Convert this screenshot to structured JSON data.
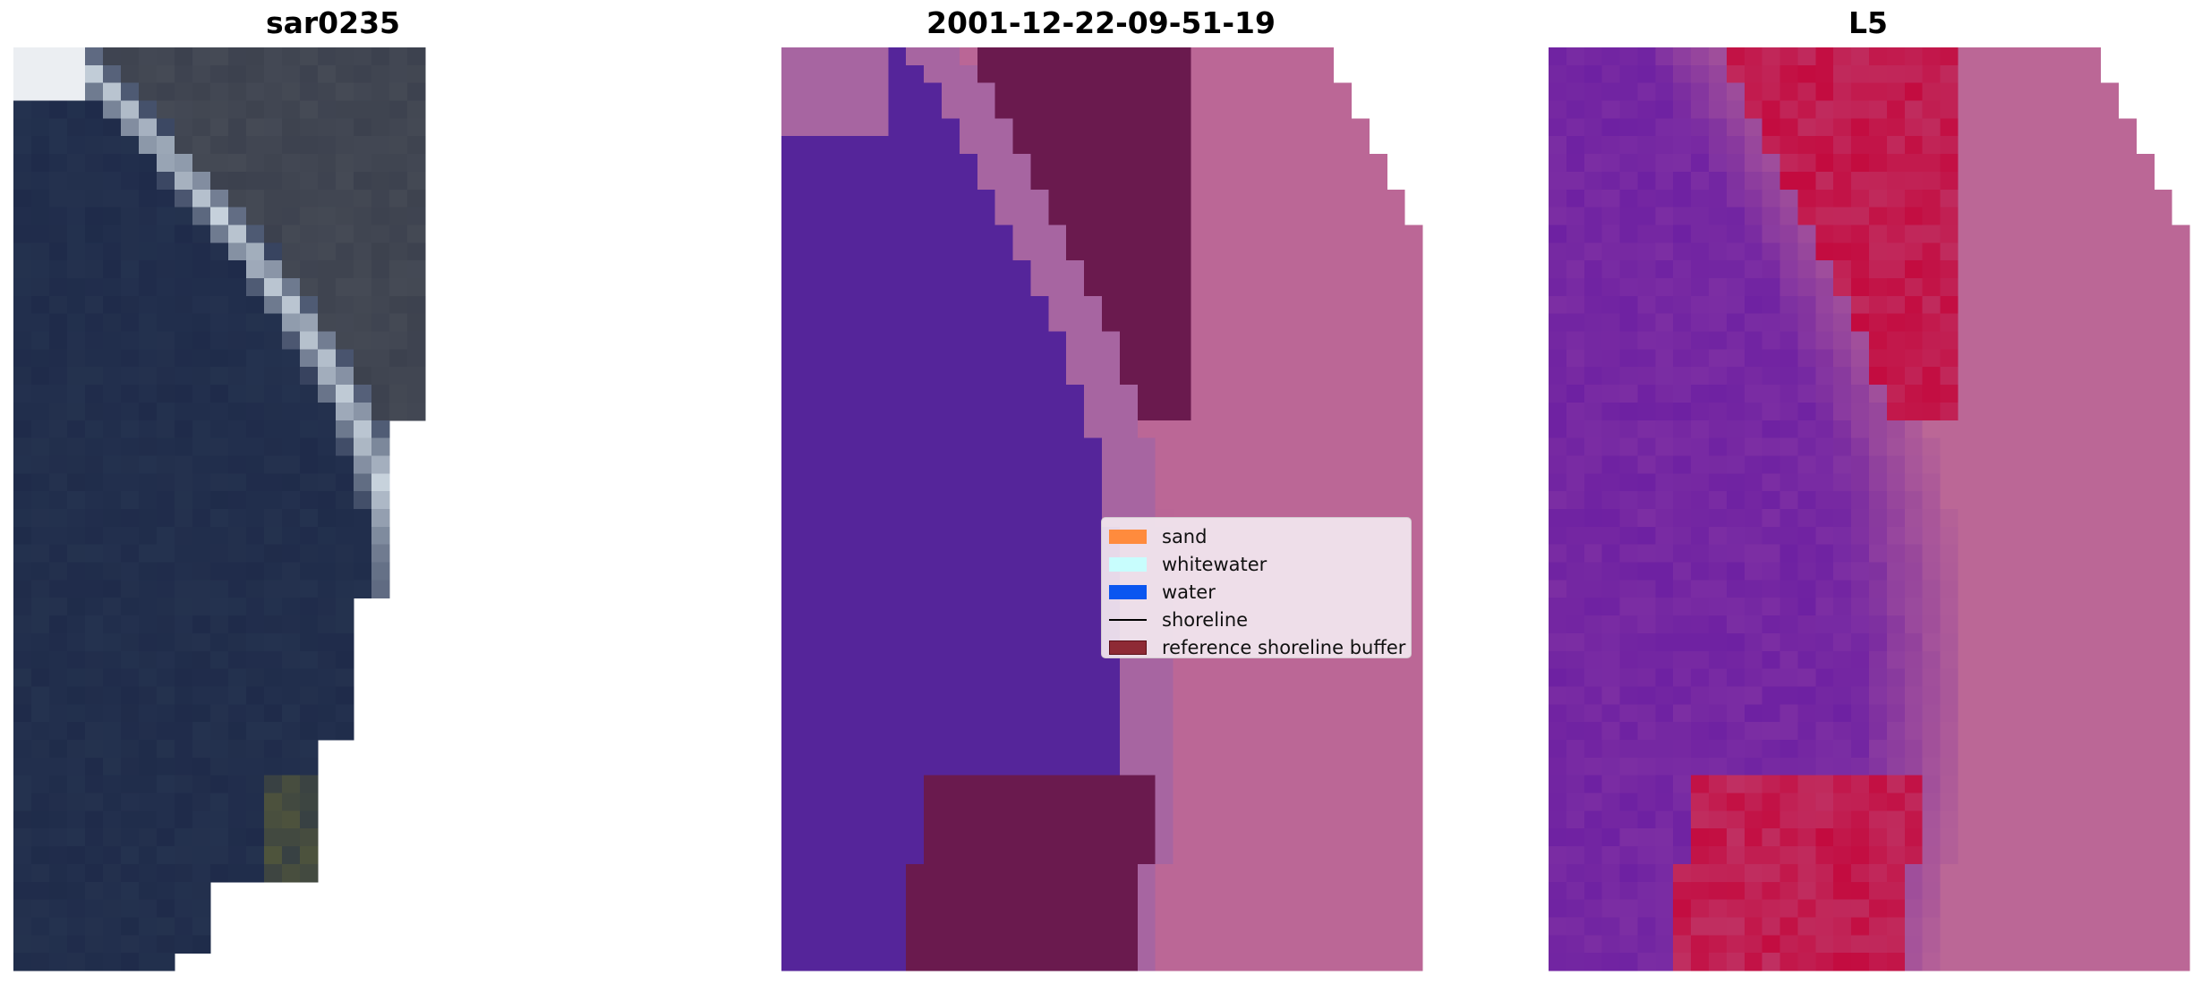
{
  "panels": [
    {
      "id": "rgb",
      "title": "sar0235"
    },
    {
      "id": "classification",
      "title": "2001-12-22-09-51-19"
    },
    {
      "id": "index",
      "title": "L5"
    }
  ],
  "legend": {
    "items": [
      {
        "label": "sand",
        "kind": "patch",
        "color": "#ff8b3d"
      },
      {
        "label": "whitewater",
        "kind": "patch",
        "color": "#c8fdfd"
      },
      {
        "label": "water",
        "kind": "patch",
        "color": "#0a56f0"
      },
      {
        "label": "shoreline",
        "kind": "line",
        "color": "#000000"
      },
      {
        "label": "reference shoreline buffer",
        "kind": "patch",
        "color": "#8e2a35"
      }
    ]
  },
  "colors": {
    "water_class": "#55259a",
    "sand_class": "#ba6696",
    "land_class": "#bb6796",
    "shallow_class": "#a765a1",
    "buffer_dark": "#6a1a4e",
    "index_red": "#c30b3f",
    "index_purple": "#7c2ea3",
    "rgb_deep_water": "#1f2b4a",
    "rgb_surf": "#c9d4de",
    "rgb_land": "#454a55"
  }
}
